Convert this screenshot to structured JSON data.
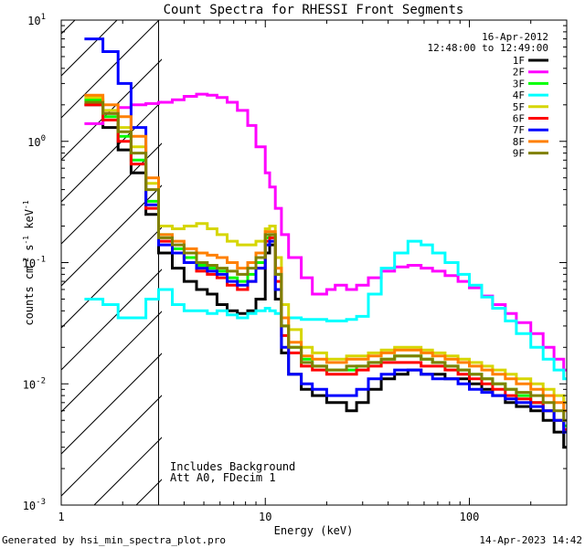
{
  "chart_data": {
    "type": "line",
    "title": "Count Spectra for RHESSI Front Segments",
    "xlabel": "Energy (keV)",
    "ylabel": "counts cm^-2 s^-1 keV^-1",
    "xscale": "log",
    "yscale": "log",
    "xlim": [
      1,
      300
    ],
    "ylim": [
      0.001,
      10
    ],
    "xticks": [
      {
        "v": 1,
        "label": "1"
      },
      {
        "v": 10,
        "label": "10"
      },
      {
        "v": 100,
        "label": "100"
      }
    ],
    "yticks": [
      {
        "v": 0.001,
        "label": "10^-3"
      },
      {
        "v": 0.01,
        "label": "10^-2"
      },
      {
        "v": 0.1,
        "label": "10^-1"
      },
      {
        "v": 1,
        "label": "10^0"
      },
      {
        "v": 10,
        "label": "10^1"
      }
    ],
    "hatched_region": [
      1,
      3
    ],
    "date": "16-Apr-2012",
    "time_range": "12:48:00 to 12:49:00",
    "annotations": [
      "Includes Background",
      "Att A0, FDecim 1"
    ],
    "footer_left": "Generated by hsi_min_spectra_plot.pro",
    "footer_right": "14-Apr-2023 14:42",
    "legend_position": "top-right",
    "series": [
      {
        "name": "1F",
        "color": "#000000",
        "x": [
          1.3,
          1.6,
          1.9,
          2.2,
          2.6,
          3.0,
          3.5,
          4.0,
          4.6,
          5.2,
          5.8,
          6.5,
          7.3,
          8.2,
          9.0,
          10.0,
          10.5,
          11.2,
          12.0,
          13.0,
          15.0,
          17.0,
          20.0,
          22.0,
          25.0,
          28.0,
          32.0,
          37.0,
          43.0,
          50.0,
          58.0,
          66.0,
          76.0,
          88.0,
          100.0,
          115.0,
          130.0,
          150.0,
          170.0,
          200.0,
          230.0,
          260.0,
          290.0
        ],
        "y": [
          2.0,
          1.3,
          0.85,
          0.55,
          0.25,
          0.12,
          0.09,
          0.07,
          0.06,
          0.055,
          0.045,
          0.04,
          0.038,
          0.04,
          0.05,
          0.12,
          0.14,
          0.05,
          0.018,
          0.012,
          0.009,
          0.008,
          0.007,
          0.007,
          0.006,
          0.007,
          0.009,
          0.011,
          0.012,
          0.013,
          0.012,
          0.012,
          0.011,
          0.011,
          0.01,
          0.009,
          0.008,
          0.007,
          0.0065,
          0.006,
          0.005,
          0.004,
          0.003
        ]
      },
      {
        "name": "2F",
        "color": "#ff00ff",
        "x": [
          1.3,
          1.6,
          1.9,
          2.2,
          2.6,
          3.0,
          3.5,
          4.0,
          4.6,
          5.2,
          5.8,
          6.5,
          7.3,
          8.2,
          9.0,
          10.0,
          10.5,
          11.2,
          12.0,
          13.0,
          15.0,
          17.0,
          20.0,
          22.0,
          25.0,
          28.0,
          32.0,
          37.0,
          43.0,
          50.0,
          58.0,
          66.0,
          76.0,
          88.0,
          100.0,
          115.0,
          130.0,
          150.0,
          170.0,
          200.0,
          230.0,
          260.0,
          290.0
        ],
        "y": [
          1.4,
          1.7,
          1.9,
          2.0,
          2.05,
          2.1,
          2.2,
          2.35,
          2.45,
          2.4,
          2.3,
          2.1,
          1.8,
          1.35,
          0.9,
          0.55,
          0.42,
          0.28,
          0.17,
          0.11,
          0.075,
          0.055,
          0.06,
          0.065,
          0.06,
          0.065,
          0.075,
          0.085,
          0.092,
          0.095,
          0.09,
          0.085,
          0.078,
          0.07,
          0.062,
          0.053,
          0.045,
          0.038,
          0.032,
          0.026,
          0.02,
          0.016,
          0.013
        ]
      },
      {
        "name": "3F",
        "color": "#00ff00",
        "x": [
          1.3,
          1.6,
          1.9,
          2.2,
          2.6,
          3.0,
          3.5,
          4.0,
          4.6,
          5.2,
          5.8,
          6.5,
          7.3,
          8.2,
          9.0,
          10.0,
          10.5,
          11.2,
          12.0,
          13.0,
          15.0,
          17.0,
          20.0,
          22.0,
          25.0,
          28.0,
          32.0,
          37.0,
          43.0,
          50.0,
          58.0,
          66.0,
          76.0,
          88.0,
          100.0,
          115.0,
          130.0,
          150.0,
          170.0,
          200.0,
          230.0,
          260.0,
          290.0
        ],
        "y": [
          2.2,
          1.6,
          1.1,
          0.7,
          0.32,
          0.17,
          0.13,
          0.11,
          0.095,
          0.09,
          0.085,
          0.075,
          0.07,
          0.08,
          0.1,
          0.16,
          0.17,
          0.08,
          0.03,
          0.02,
          0.016,
          0.014,
          0.013,
          0.013,
          0.013,
          0.014,
          0.015,
          0.016,
          0.017,
          0.017,
          0.016,
          0.015,
          0.014,
          0.013,
          0.012,
          0.011,
          0.01,
          0.009,
          0.008,
          0.007,
          0.006,
          0.005,
          0.0045
        ]
      },
      {
        "name": "4F",
        "color": "#00ffff",
        "x": [
          1.3,
          1.6,
          1.9,
          2.2,
          2.6,
          3.0,
          3.5,
          4.0,
          4.6,
          5.2,
          5.8,
          6.5,
          7.3,
          8.2,
          9.0,
          10.0,
          10.5,
          11.2,
          12.0,
          13.0,
          15.0,
          17.0,
          20.0,
          22.0,
          25.0,
          28.0,
          32.0,
          37.0,
          43.0,
          50.0,
          58.0,
          66.0,
          76.0,
          88.0,
          100.0,
          115.0,
          130.0,
          150.0,
          170.0,
          200.0,
          230.0,
          260.0,
          290.0
        ],
        "y": [
          0.05,
          0.045,
          0.035,
          0.035,
          0.05,
          0.06,
          0.045,
          0.04,
          0.04,
          0.038,
          0.04,
          0.037,
          0.035,
          0.038,
          0.04,
          0.042,
          0.04,
          0.038,
          0.035,
          0.035,
          0.034,
          0.034,
          0.033,
          0.033,
          0.034,
          0.036,
          0.055,
          0.09,
          0.12,
          0.15,
          0.14,
          0.12,
          0.1,
          0.08,
          0.065,
          0.052,
          0.042,
          0.033,
          0.026,
          0.02,
          0.016,
          0.013,
          0.011
        ]
      },
      {
        "name": "5F",
        "color": "#d6d600",
        "x": [
          1.3,
          1.6,
          1.9,
          2.2,
          2.6,
          3.0,
          3.5,
          4.0,
          4.6,
          5.2,
          5.8,
          6.5,
          7.3,
          8.2,
          9.0,
          10.0,
          10.5,
          11.2,
          12.0,
          13.0,
          15.0,
          17.0,
          20.0,
          22.0,
          25.0,
          28.0,
          32.0,
          37.0,
          43.0,
          50.0,
          58.0,
          66.0,
          76.0,
          88.0,
          100.0,
          115.0,
          130.0,
          150.0,
          170.0,
          200.0,
          230.0,
          260.0,
          290.0
        ],
        "y": [
          2.3,
          1.8,
          1.3,
          0.9,
          0.45,
          0.2,
          0.19,
          0.2,
          0.21,
          0.19,
          0.17,
          0.15,
          0.14,
          0.14,
          0.15,
          0.19,
          0.2,
          0.11,
          0.045,
          0.028,
          0.02,
          0.018,
          0.016,
          0.016,
          0.017,
          0.017,
          0.018,
          0.019,
          0.02,
          0.02,
          0.019,
          0.018,
          0.017,
          0.016,
          0.015,
          0.014,
          0.013,
          0.012,
          0.011,
          0.01,
          0.009,
          0.008,
          0.007
        ]
      },
      {
        "name": "6F",
        "color": "#ff0000",
        "x": [
          1.3,
          1.6,
          1.9,
          2.2,
          2.6,
          3.0,
          3.5,
          4.0,
          4.6,
          5.2,
          5.8,
          6.5,
          7.3,
          8.2,
          9.0,
          10.0,
          10.5,
          11.2,
          12.0,
          13.0,
          15.0,
          17.0,
          20.0,
          22.0,
          25.0,
          28.0,
          32.0,
          37.0,
          43.0,
          50.0,
          58.0,
          66.0,
          76.0,
          88.0,
          100.0,
          115.0,
          130.0,
          150.0,
          170.0,
          200.0,
          230.0,
          260.0,
          290.0
        ],
        "y": [
          2.0,
          1.5,
          1.0,
          0.65,
          0.28,
          0.15,
          0.12,
          0.1,
          0.085,
          0.08,
          0.075,
          0.065,
          0.06,
          0.07,
          0.09,
          0.15,
          0.16,
          0.07,
          0.025,
          0.018,
          0.014,
          0.013,
          0.012,
          0.012,
          0.012,
          0.013,
          0.014,
          0.015,
          0.015,
          0.015,
          0.014,
          0.014,
          0.013,
          0.012,
          0.011,
          0.01,
          0.009,
          0.008,
          0.0075,
          0.007,
          0.006,
          0.005,
          0.0042
        ]
      },
      {
        "name": "7F",
        "color": "#0000ff",
        "x": [
          1.3,
          1.6,
          1.9,
          2.2,
          2.6,
          3.0,
          3.5,
          4.0,
          4.6,
          5.2,
          5.8,
          6.5,
          7.3,
          8.2,
          9.0,
          10.0,
          10.5,
          11.2,
          12.0,
          13.0,
          15.0,
          17.0,
          20.0,
          22.0,
          25.0,
          28.0,
          32.0,
          37.0,
          43.0,
          50.0,
          58.0,
          66.0,
          76.0,
          88.0,
          100.0,
          115.0,
          130.0,
          150.0,
          170.0,
          200.0,
          230.0,
          260.0,
          290.0
        ],
        "y": [
          7.0,
          5.5,
          3.0,
          1.3,
          0.3,
          0.14,
          0.12,
          0.1,
          0.09,
          0.085,
          0.08,
          0.07,
          0.065,
          0.07,
          0.09,
          0.14,
          0.15,
          0.06,
          0.02,
          0.012,
          0.01,
          0.009,
          0.008,
          0.008,
          0.008,
          0.009,
          0.011,
          0.012,
          0.013,
          0.013,
          0.012,
          0.011,
          0.011,
          0.01,
          0.009,
          0.0085,
          0.008,
          0.0075,
          0.007,
          0.0065,
          0.006,
          0.005,
          0.004
        ]
      },
      {
        "name": "8F",
        "color": "#ff8000",
        "x": [
          1.3,
          1.6,
          1.9,
          2.2,
          2.6,
          3.0,
          3.5,
          4.0,
          4.6,
          5.2,
          5.8,
          6.5,
          7.3,
          8.2,
          9.0,
          10.0,
          10.5,
          11.2,
          12.0,
          13.0,
          15.0,
          17.0,
          20.0,
          22.0,
          25.0,
          28.0,
          32.0,
          37.0,
          43.0,
          50.0,
          58.0,
          66.0,
          76.0,
          88.0,
          100.0,
          115.0,
          130.0,
          150.0,
          170.0,
          200.0,
          230.0,
          260.0,
          290.0
        ],
        "y": [
          2.4,
          2.0,
          1.6,
          1.1,
          0.5,
          0.17,
          0.15,
          0.13,
          0.12,
          0.115,
          0.11,
          0.1,
          0.09,
          0.1,
          0.12,
          0.18,
          0.18,
          0.09,
          0.035,
          0.022,
          0.017,
          0.016,
          0.015,
          0.015,
          0.016,
          0.016,
          0.017,
          0.018,
          0.019,
          0.019,
          0.018,
          0.017,
          0.016,
          0.015,
          0.014,
          0.013,
          0.012,
          0.011,
          0.01,
          0.009,
          0.008,
          0.007,
          0.006
        ]
      },
      {
        "name": "9F",
        "color": "#808000",
        "x": [
          1.3,
          1.6,
          1.9,
          2.2,
          2.6,
          3.0,
          3.5,
          4.0,
          4.6,
          5.2,
          5.8,
          6.5,
          7.3,
          8.2,
          9.0,
          10.0,
          10.5,
          11.2,
          12.0,
          13.0,
          15.0,
          17.0,
          20.0,
          22.0,
          25.0,
          28.0,
          32.0,
          37.0,
          43.0,
          50.0,
          58.0,
          66.0,
          76.0,
          88.0,
          100.0,
          115.0,
          130.0,
          150.0,
          170.0,
          200.0,
          230.0,
          260.0,
          290.0
        ],
        "y": [
          2.1,
          1.7,
          1.2,
          0.8,
          0.4,
          0.16,
          0.14,
          0.12,
          0.1,
          0.095,
          0.09,
          0.085,
          0.08,
          0.09,
          0.11,
          0.17,
          0.17,
          0.08,
          0.03,
          0.02,
          0.015,
          0.014,
          0.013,
          0.013,
          0.014,
          0.014,
          0.015,
          0.016,
          0.017,
          0.017,
          0.016,
          0.015,
          0.014,
          0.013,
          0.012,
          0.011,
          0.01,
          0.009,
          0.0085,
          0.008,
          0.007,
          0.006,
          0.005
        ]
      }
    ]
  }
}
